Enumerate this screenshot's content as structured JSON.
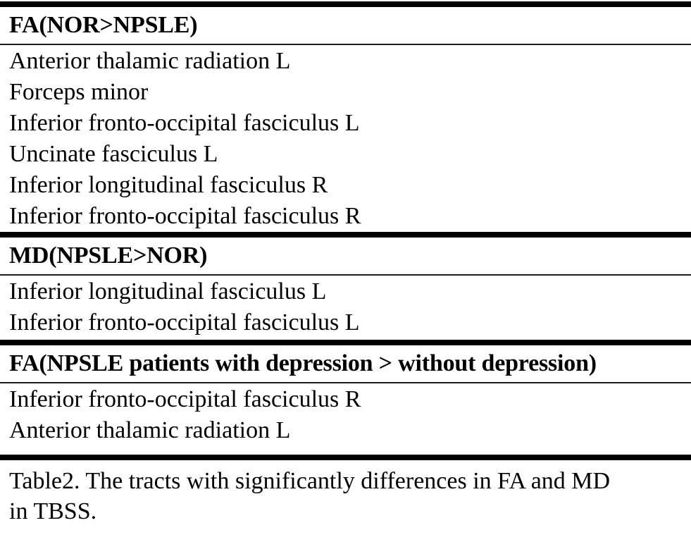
{
  "table": {
    "sections": [
      {
        "header": "FA(NOR>NPSLE)",
        "rows": [
          "Anterior thalamic radiation L",
          "Forceps minor",
          "Inferior fronto-occipital fasciculus L",
          "Uncinate fasciculus L",
          "Inferior longitudinal fasciculus R",
          "Inferior fronto-occipital fasciculus R"
        ]
      },
      {
        "header": "MD(NPSLE>NOR)",
        "rows": [
          "Inferior longitudinal fasciculus L",
          "Inferior fronto-occipital fasciculus L"
        ]
      },
      {
        "header": "FA(NPSLE patients with depression > without depression)",
        "rows": [
          "Inferior fronto-occipital fasciculus R",
          "Anterior thalamic radiation L"
        ]
      }
    ],
    "caption_lines": [
      "Table2. The tracts with significantly differences in FA and MD",
      "in TBSS."
    ]
  },
  "colors": {
    "text": "#000000",
    "background": "#ffffff",
    "rule_thick": "#000000",
    "rule_thin": "#1c1c1c"
  }
}
